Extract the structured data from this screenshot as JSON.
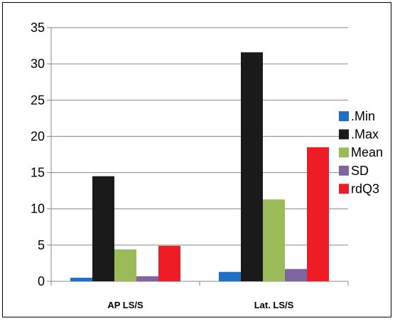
{
  "chart_data": {
    "type": "bar",
    "title": "",
    "xlabel": "",
    "ylabel": "",
    "categories": [
      "AP LS/S",
      "Lat. LS/S"
    ],
    "ylim": [
      0,
      35
    ],
    "yticks": [
      0,
      5,
      10,
      15,
      20,
      25,
      30,
      35
    ],
    "grid": true,
    "legend_position": "right",
    "series": [
      {
        "name": ".Min",
        "color": "#1F6FC5",
        "values": [
          0.5,
          1.3
        ]
      },
      {
        "name": ".Max",
        "color": "#1A1A1A",
        "values": [
          14.5,
          31.6
        ]
      },
      {
        "name": "Mean",
        "color": "#9BBB59",
        "values": [
          4.4,
          11.3
        ]
      },
      {
        "name": "SD",
        "color": "#8064A2",
        "values": [
          0.7,
          1.7
        ]
      },
      {
        "name": "rdQ3",
        "color": "#EE1C25",
        "values": [
          4.9,
          18.5
        ]
      }
    ]
  }
}
